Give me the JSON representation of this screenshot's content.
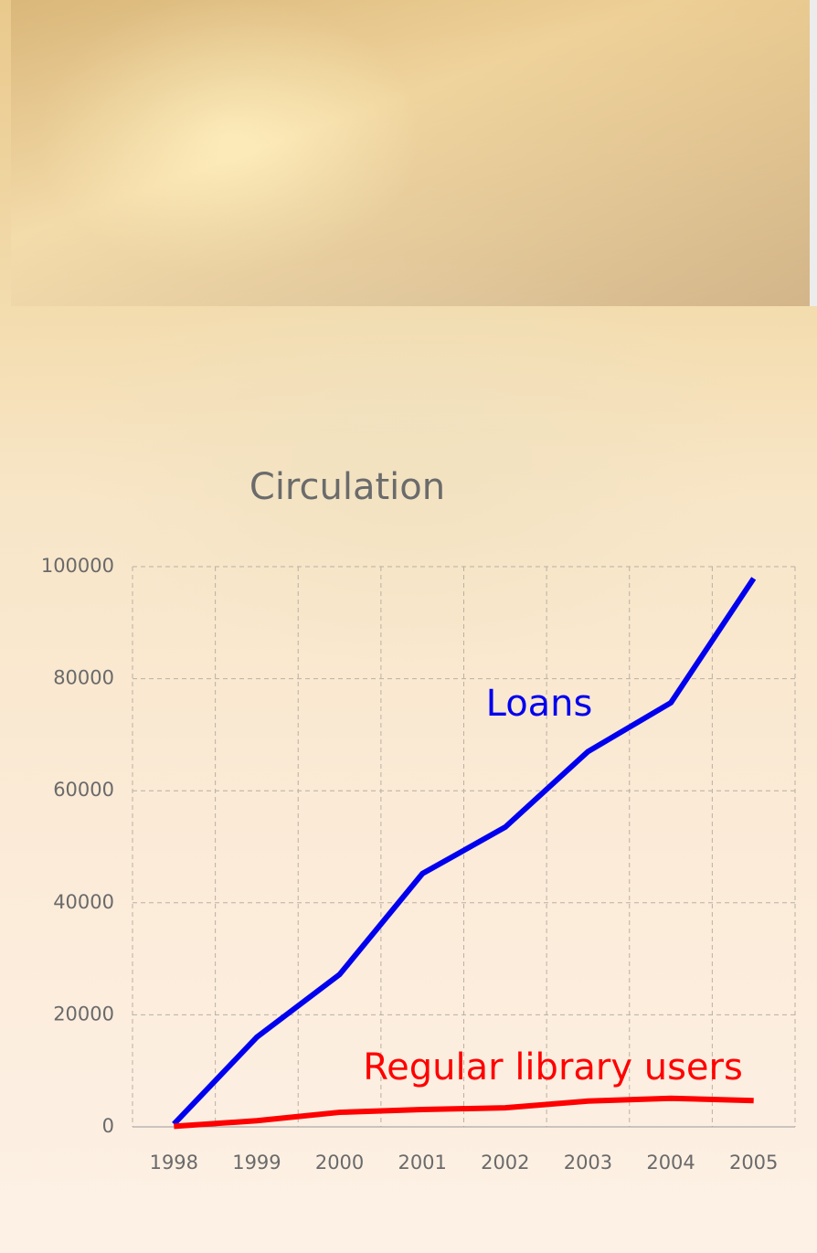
{
  "chart_data": {
    "type": "line",
    "title": "Circulation",
    "categories": [
      "1998",
      "1999",
      "2000",
      "2001",
      "2002",
      "2003",
      "2004",
      "2005"
    ],
    "series": [
      {
        "name": "Loans",
        "color": "#0000ee",
        "values": [
          500,
          16000,
          27200,
          45200,
          53500,
          67000,
          75700,
          97900
        ]
      },
      {
        "name": "Regular library users",
        "color": "#ff0000",
        "values": [
          100,
          1100,
          2600,
          3100,
          3400,
          4600,
          5100,
          4700
        ]
      }
    ],
    "ylim": [
      0,
      100000
    ],
    "yticks": [
      0,
      20000,
      40000,
      60000,
      80000,
      100000
    ],
    "grid": true
  }
}
